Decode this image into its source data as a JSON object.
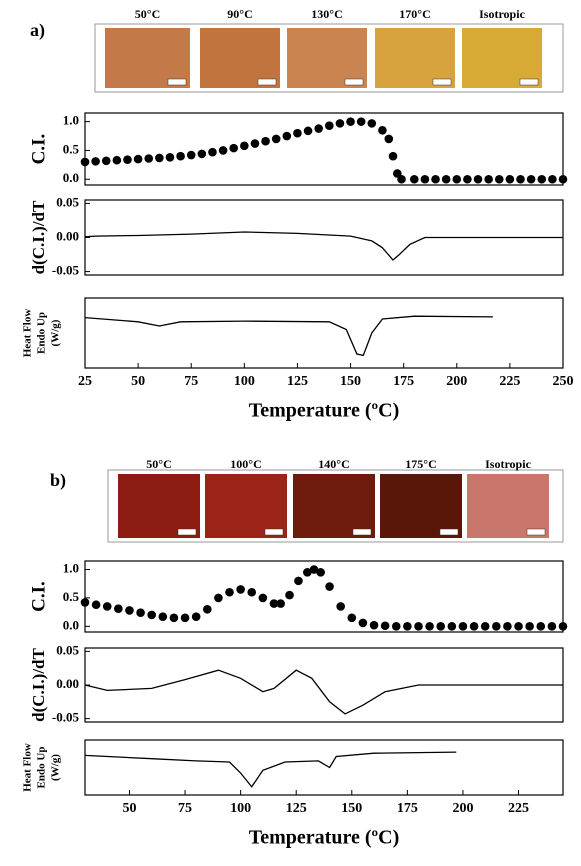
{
  "panels": [
    {
      "label": "a)",
      "image_labels": [
        "50°C",
        "90°C",
        "130°C",
        "170°C",
        "Isotropic"
      ]
    },
    {
      "label": "b)",
      "image_labels": [
        "50°C",
        "100°C",
        "140°C",
        "175°C",
        "Isotropic"
      ]
    }
  ],
  "chart_data": [
    {
      "type": "scatter",
      "ylabel": "C.I.",
      "color": "#000000",
      "x": [
        25,
        30,
        35,
        40,
        45,
        50,
        55,
        60,
        65,
        70,
        75,
        80,
        85,
        90,
        95,
        100,
        105,
        110,
        115,
        120,
        125,
        130,
        135,
        140,
        145,
        150,
        155,
        160,
        165,
        168,
        170,
        172,
        174,
        180,
        185,
        190,
        195,
        200,
        205,
        210,
        215,
        220,
        225,
        230,
        235,
        240,
        245,
        250
      ],
      "values": [
        0.3,
        0.31,
        0.32,
        0.33,
        0.34,
        0.35,
        0.36,
        0.37,
        0.38,
        0.4,
        0.42,
        0.44,
        0.47,
        0.5,
        0.54,
        0.58,
        0.62,
        0.66,
        0.7,
        0.75,
        0.8,
        0.84,
        0.88,
        0.93,
        0.97,
        1.0,
        1.0,
        0.97,
        0.85,
        0.7,
        0.4,
        0.1,
        0.0,
        0,
        0,
        0,
        0,
        0,
        0,
        0,
        0,
        0,
        0,
        0,
        0,
        0,
        0,
        0
      ],
      "xlim": [
        25,
        250
      ],
      "ylim": [
        -0.1,
        1.15
      ],
      "yticks": [
        {
          "value": 0,
          "label": "0.0"
        },
        {
          "value": 0.5,
          "label": "0.5"
        },
        {
          "value": 1,
          "label": "1.0"
        }
      ]
    },
    {
      "type": "line",
      "ylabel": "d(C.I.)/dT",
      "color": "#000000",
      "x": [
        25,
        30,
        50,
        75,
        100,
        125,
        150,
        160,
        165,
        170,
        173,
        178,
        185,
        250
      ],
      "values": [
        0.001,
        0.002,
        0.003,
        0.005,
        0.008,
        0.006,
        0.002,
        -0.005,
        -0.015,
        -0.033,
        -0.025,
        -0.01,
        0,
        0
      ],
      "xlim": [
        25,
        250
      ],
      "ylim": [
        -0.055,
        0.055
      ],
      "yticks": [
        {
          "value": -0.05,
          "label": "-0.05"
        },
        {
          "value": 0,
          "label": "0.00"
        },
        {
          "value": 0.05,
          "label": "0.05"
        }
      ]
    },
    {
      "type": "line",
      "ylabel": [
        "Heat Flow",
        "Endo Up",
        "(W/g)"
      ],
      "color": "#000000",
      "x": [
        25,
        50,
        60,
        70,
        100,
        140,
        148,
        153,
        156,
        160,
        165,
        180,
        217
      ],
      "values": [
        0.72,
        0.66,
        0.6,
        0.66,
        0.67,
        0.66,
        0.55,
        0.2,
        0.18,
        0.5,
        0.7,
        0.74,
        0.73
      ],
      "xlim": [
        25,
        250
      ],
      "ylim": [
        0,
        1
      ],
      "xticks": [
        25,
        50,
        75,
        100,
        125,
        150,
        175,
        200,
        225,
        250
      ],
      "xlabel": "Temperature (ºC)"
    },
    {
      "type": "scatter",
      "ylabel": "C.I.",
      "color": "#000000",
      "x": [
        30,
        35,
        40,
        45,
        50,
        55,
        60,
        65,
        70,
        75,
        80,
        85,
        90,
        95,
        100,
        105,
        110,
        115,
        118,
        122,
        126,
        130,
        133,
        136,
        140,
        145,
        150,
        155,
        160,
        165,
        170,
        175,
        180,
        185,
        190,
        195,
        200,
        205,
        210,
        215,
        220,
        225,
        230,
        235,
        240,
        245
      ],
      "values": [
        0.42,
        0.38,
        0.35,
        0.31,
        0.28,
        0.24,
        0.2,
        0.17,
        0.15,
        0.15,
        0.17,
        0.3,
        0.5,
        0.6,
        0.65,
        0.6,
        0.5,
        0.4,
        0.4,
        0.55,
        0.8,
        0.95,
        1.0,
        0.95,
        0.7,
        0.35,
        0.15,
        0.06,
        0.02,
        0.01,
        0,
        0,
        0,
        0,
        0,
        0,
        0,
        0,
        0,
        0,
        0,
        0,
        0,
        0,
        0,
        0
      ],
      "xlim": [
        30,
        245
      ],
      "ylim": [
        -0.1,
        1.15
      ],
      "yticks": [
        {
          "value": 0,
          "label": "0.0"
        },
        {
          "value": 0.5,
          "label": "0.5"
        },
        {
          "value": 1,
          "label": "1.0"
        }
      ]
    },
    {
      "type": "line",
      "ylabel": "d(C.I.)/dT",
      "color": "#000000",
      "x": [
        30,
        40,
        60,
        75,
        90,
        100,
        110,
        115,
        125,
        132,
        140,
        147,
        155,
        165,
        180,
        245
      ],
      "values": [
        0,
        -0.008,
        -0.005,
        0.008,
        0.022,
        0.01,
        -0.01,
        -0.005,
        0.022,
        0.01,
        -0.025,
        -0.043,
        -0.03,
        -0.01,
        0,
        0
      ],
      "xlim": [
        30,
        245
      ],
      "ylim": [
        -0.055,
        0.055
      ],
      "yticks": [
        {
          "value": -0.05,
          "label": "-0.05"
        },
        {
          "value": 0,
          "label": "0.00"
        },
        {
          "value": 0.05,
          "label": "0.05"
        }
      ]
    },
    {
      "type": "line",
      "ylabel": [
        "Heat Flow",
        "Endo Up",
        "(W/g)"
      ],
      "color": "#000000",
      "x": [
        30,
        60,
        80,
        95,
        100,
        105,
        110,
        120,
        135,
        140,
        143,
        160,
        197
      ],
      "values": [
        0.72,
        0.66,
        0.62,
        0.6,
        0.4,
        0.15,
        0.45,
        0.6,
        0.62,
        0.5,
        0.7,
        0.76,
        0.78
      ],
      "xlim": [
        30,
        245
      ],
      "ylim": [
        0,
        1
      ],
      "xticks": [
        50,
        75,
        100,
        125,
        150,
        175,
        200,
        225
      ],
      "xlabel": "Temperature (ºC)"
    }
  ]
}
